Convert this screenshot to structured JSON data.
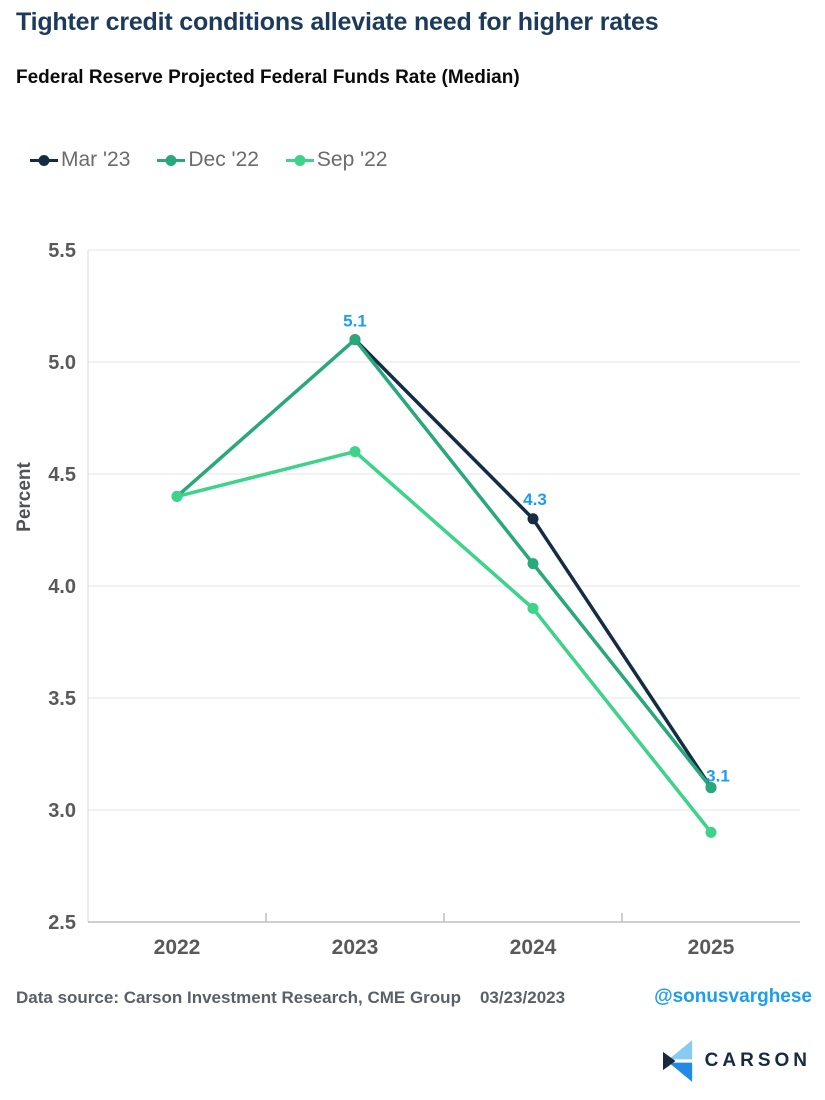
{
  "header": {
    "title": "Tighter credit conditions alleviate need for higher rates",
    "subtitle": "Federal Reserve Projected Federal Funds Rate (Median)"
  },
  "chart_data": {
    "type": "line",
    "title": "Tighter credit conditions alleviate need for higher rates",
    "subtitle": "Federal Reserve Projected Federal Funds Rate (Median)",
    "ylabel": "Percent",
    "xlabel": "",
    "categories": [
      "2022",
      "2023",
      "2024",
      "2025"
    ],
    "ylim": [
      2.5,
      5.5
    ],
    "yticks": [
      "5.5",
      "5.0",
      "4.5",
      "4.0",
      "3.5",
      "3.0",
      "2.5"
    ],
    "grid": "horizontal",
    "legend_position": "top-left",
    "series": [
      {
        "name": "Mar '23",
        "color": "#152C45",
        "values": [
          null,
          5.1,
          4.3,
          3.1
        ],
        "point_labels": [
          null,
          "5.1",
          "4.3",
          "3.1"
        ],
        "label_color": "#1E9CF4"
      },
      {
        "name": "Dec '22",
        "color": "#29A87B",
        "values": [
          4.4,
          5.1,
          4.1,
          3.1
        ]
      },
      {
        "name": "Sep '22",
        "color": "#3DD38A",
        "values": [
          4.4,
          4.6,
          3.9,
          2.9
        ]
      }
    ]
  },
  "footer": {
    "source": "Data source: Carson Investment Research, CME Group",
    "date": "03/23/2023",
    "handle": "@sonusvarghese",
    "handle_color": "#1B9DF0",
    "logo_text": "CARSON"
  },
  "colors": {
    "title": "#1B3A5C",
    "axis_text": "#595959",
    "gridline": "#E4E4E4",
    "data_label_blue": "#1E9CF4",
    "logo_light_blue": "#85CBF2",
    "logo_bright_blue": "#2289E4",
    "logo_navy": "#182A3D"
  }
}
